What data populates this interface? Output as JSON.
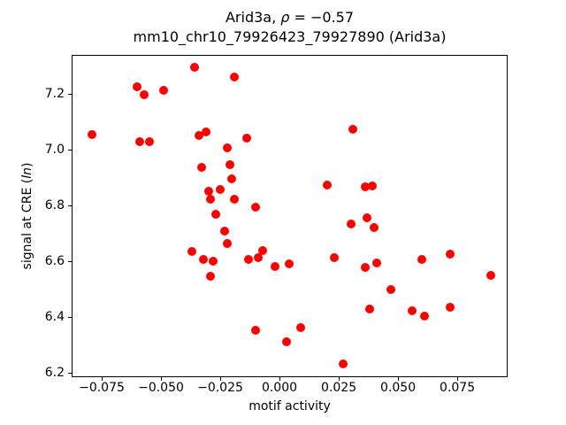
{
  "chart_data": {
    "type": "scatter",
    "title": {
      "line1_prefix": "Arid3a, ",
      "line1_rho": "ρ",
      "line1_suffix": " = −0.57",
      "line2": "mm10_chr10_79926423_79927890 (Arid3a)"
    },
    "xlabel": "motif activity",
    "ylabel_prefix": "signal at CRE (",
    "ylabel_italic": "ln",
    "ylabel_suffix": ")",
    "marker_color": "#ff0000",
    "grid": false,
    "legend": "none",
    "xlim": [
      -0.0873,
      0.0966
    ],
    "ylim": [
      6.181,
      7.338
    ],
    "x_ticks": [
      {
        "value": -0.075,
        "label": "−0.075"
      },
      {
        "value": -0.05,
        "label": "−0.050"
      },
      {
        "value": -0.025,
        "label": "−0.025"
      },
      {
        "value": 0.0,
        "label": "0.000"
      },
      {
        "value": 0.025,
        "label": "0.025"
      },
      {
        "value": 0.05,
        "label": "0.050"
      },
      {
        "value": 0.075,
        "label": "0.075"
      }
    ],
    "y_ticks": [
      {
        "value": 6.2,
        "label": "6.2"
      },
      {
        "value": 6.4,
        "label": "6.4"
      },
      {
        "value": 6.6,
        "label": "6.6"
      },
      {
        "value": 6.8,
        "label": "6.8"
      },
      {
        "value": 7.0,
        "label": "7.0"
      },
      {
        "value": 7.2,
        "label": "7.2"
      }
    ],
    "points": [
      [
        -0.079,
        7.055
      ],
      [
        -0.06,
        7.227
      ],
      [
        -0.057,
        7.198
      ],
      [
        -0.049,
        7.213
      ],
      [
        -0.059,
        7.031
      ],
      [
        -0.055,
        7.031
      ],
      [
        -0.036,
        7.298
      ],
      [
        -0.019,
        7.263
      ],
      [
        -0.034,
        7.053
      ],
      [
        -0.031,
        7.066
      ],
      [
        -0.014,
        7.042
      ],
      [
        -0.022,
        7.008
      ],
      [
        -0.021,
        6.947
      ],
      [
        -0.033,
        6.938
      ],
      [
        -0.02,
        6.897
      ],
      [
        -0.03,
        6.853
      ],
      [
        -0.025,
        6.858
      ],
      [
        -0.029,
        6.823
      ],
      [
        -0.019,
        6.824
      ],
      [
        -0.01,
        6.795
      ],
      [
        -0.027,
        6.77
      ],
      [
        -0.023,
        6.71
      ],
      [
        -0.022,
        6.663
      ],
      [
        -0.037,
        6.636
      ],
      [
        -0.032,
        6.608
      ],
      [
        -0.028,
        6.601
      ],
      [
        -0.029,
        6.546
      ],
      [
        -0.013,
        6.606
      ],
      [
        -0.009,
        6.615
      ],
      [
        -0.007,
        6.639
      ],
      [
        -0.002,
        6.583
      ],
      [
        0.004,
        6.59
      ],
      [
        -0.01,
        6.354
      ],
      [
        0.003,
        6.313
      ],
      [
        0.009,
        6.362
      ],
      [
        0.027,
        6.233
      ],
      [
        0.031,
        7.075
      ],
      [
        0.02,
        6.874
      ],
      [
        0.036,
        6.869
      ],
      [
        0.039,
        6.871
      ],
      [
        0.037,
        6.756
      ],
      [
        0.03,
        6.735
      ],
      [
        0.04,
        6.721
      ],
      [
        0.023,
        6.615
      ],
      [
        0.036,
        6.578
      ],
      [
        0.041,
        6.594
      ],
      [
        0.06,
        6.606
      ],
      [
        0.072,
        6.626
      ],
      [
        0.089,
        6.549
      ],
      [
        0.047,
        6.498
      ],
      [
        0.038,
        6.43
      ],
      [
        0.056,
        6.422
      ],
      [
        0.061,
        6.403
      ],
      [
        0.072,
        6.435
      ]
    ]
  }
}
